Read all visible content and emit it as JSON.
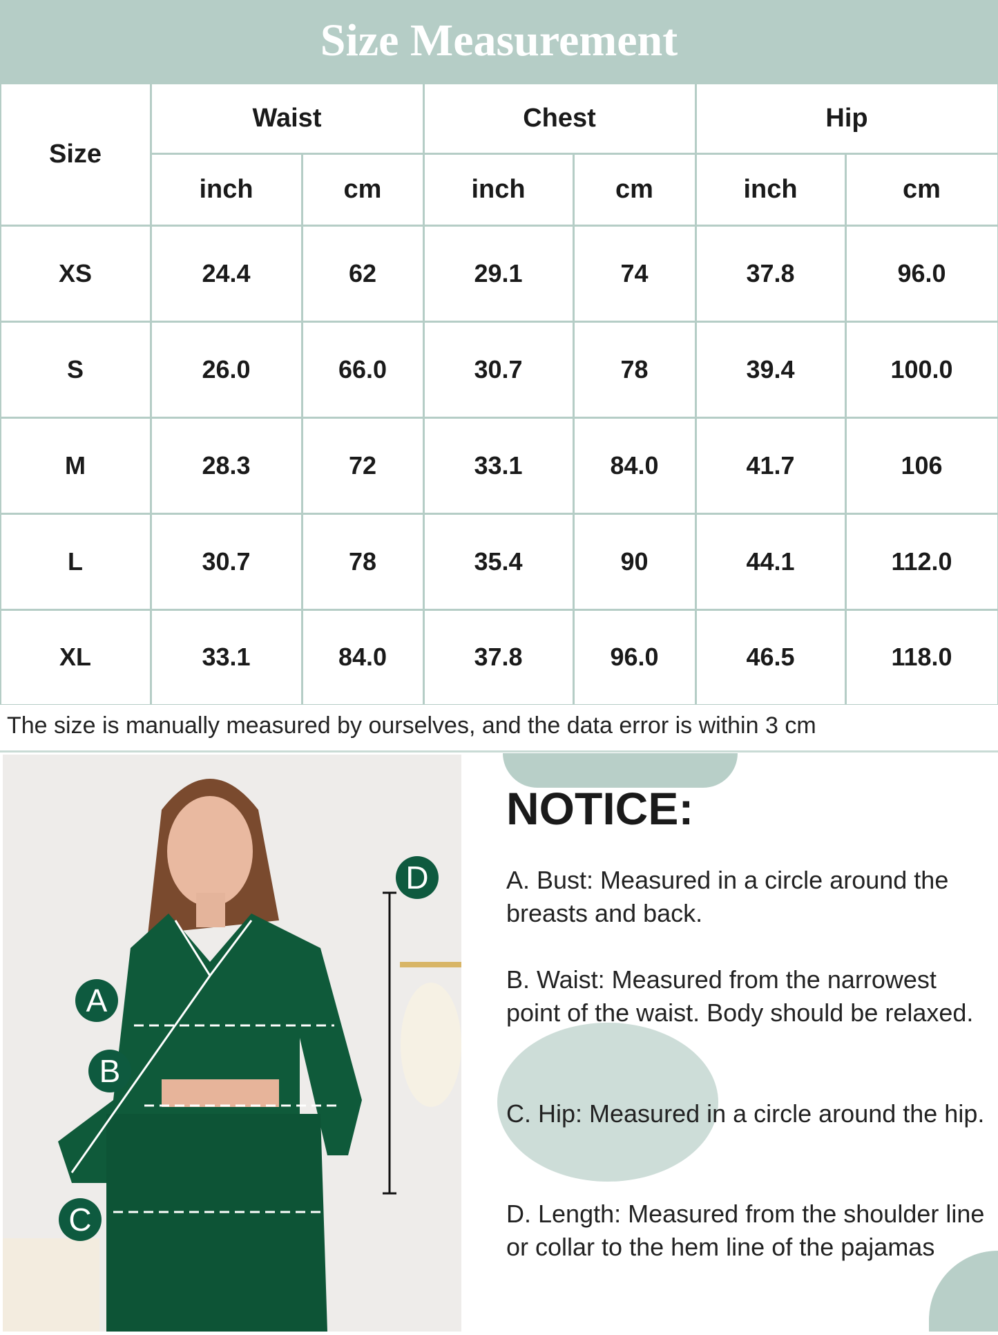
{
  "title": "Size Measurement",
  "table": {
    "size_header": "Size",
    "groups": [
      "Waist",
      "Chest",
      "Hip"
    ],
    "units": [
      "inch",
      "cm",
      "inch",
      "cm",
      "inch",
      "cm"
    ],
    "rows": [
      [
        "XS",
        "24.4",
        "62",
        "29.1",
        "74",
        "37.8",
        "96.0"
      ],
      [
        "S",
        "26.0",
        "66.0",
        "30.7",
        "78",
        "39.4",
        "100.0"
      ],
      [
        "M",
        "28.3",
        "72",
        "33.1",
        "84.0",
        "41.7",
        "106"
      ],
      [
        "L",
        "30.7",
        "78",
        "35.4",
        "90",
        "44.1",
        "112.0"
      ],
      [
        "XL",
        "33.1",
        "84.0",
        "37.8",
        "96.0",
        "46.5",
        "118.0"
      ]
    ]
  },
  "footnote": "The size is manually measured by ourselves, and the data error is within 3 cm",
  "photo": {
    "markers": [
      "A",
      "B",
      "C",
      "D"
    ],
    "garment_color": "#0f5a3a"
  },
  "notice": {
    "heading": "NOTICE:",
    "items": [
      "A. Bust: Measured in a circle around the breasts and back.",
      "B. Waist: Measured from the narrowest point of the waist. Body should be relaxed.",
      "C. Hip: Measured in a circle around the hip.",
      "D. Length: Measured from the shoulder line or collar to the hem line of the pajamas"
    ]
  },
  "colors": {
    "accent": "#b5cdc6",
    "marker": "#0e5a3f"
  }
}
